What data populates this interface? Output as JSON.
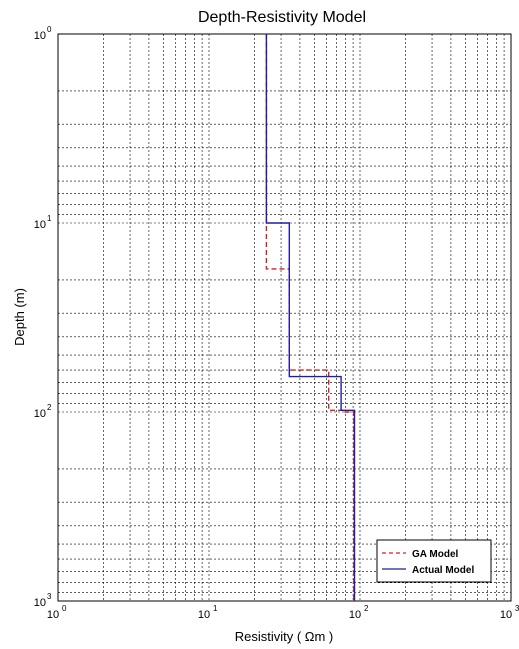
{
  "chart_data": {
    "type": "line",
    "title": "Depth-Resistivity Model",
    "xlabel": "Resistivity ( Ωm )",
    "ylabel": "Depth (m)",
    "x_scale": "log",
    "y_scale": "log",
    "y_reversed": true,
    "xlim": [
      1,
      1000
    ],
    "ylim": [
      1,
      1000
    ],
    "grid": true,
    "legend_position": "bottom-right",
    "x_ticks": [
      {
        "base": "10",
        "exp": "0",
        "value": 1
      },
      {
        "base": "10",
        "exp": "1",
        "value": 10
      },
      {
        "base": "10",
        "exp": "2",
        "value": 100
      },
      {
        "base": "10",
        "exp": "3",
        "value": 1000
      }
    ],
    "y_ticks": [
      {
        "base": "10",
        "exp": "0",
        "value": 1
      },
      {
        "base": "10",
        "exp": "1",
        "value": 10
      },
      {
        "base": "10",
        "exp": "2",
        "value": 100
      },
      {
        "base": "10",
        "exp": "3",
        "value": 1000
      }
    ],
    "series": [
      {
        "name": "GA Model",
        "color": "#d62020",
        "style": "dashed",
        "points": [
          [
            24,
            1
          ],
          [
            24,
            17.5
          ],
          [
            34,
            17.5
          ],
          [
            34,
            60
          ],
          [
            62,
            60
          ],
          [
            62,
            98
          ],
          [
            77,
            98
          ],
          [
            77,
            100
          ],
          [
            91,
            100
          ],
          [
            91,
            1000
          ]
        ]
      },
      {
        "name": "Actual Model",
        "color": "#1e1ea8",
        "style": "solid",
        "points": [
          [
            24,
            1
          ],
          [
            24,
            10
          ],
          [
            34,
            10
          ],
          [
            34,
            65
          ],
          [
            75,
            65
          ],
          [
            75,
            98
          ],
          [
            92,
            98
          ],
          [
            92,
            1000
          ]
        ]
      }
    ]
  }
}
